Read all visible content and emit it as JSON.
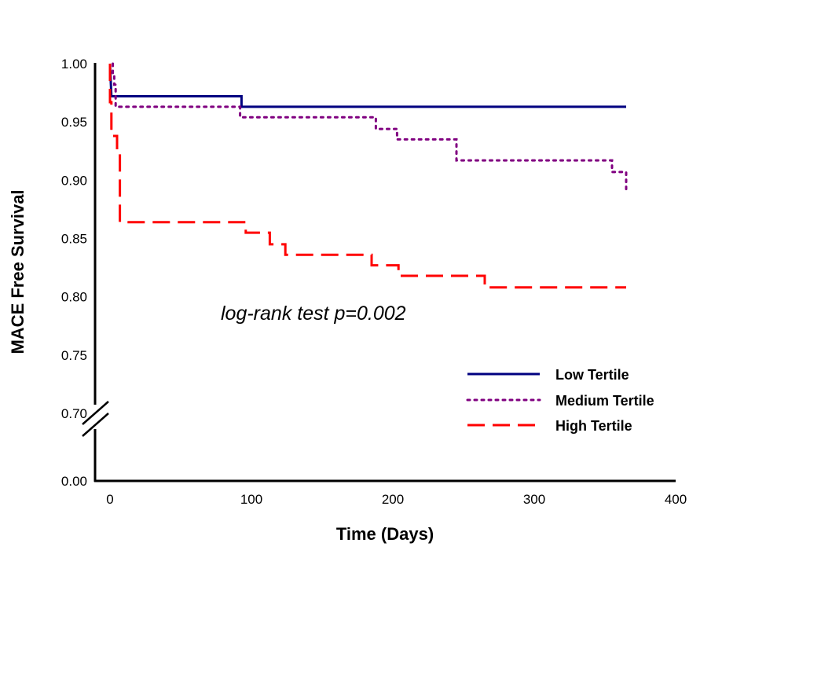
{
  "chart_data": {
    "type": "line",
    "subtype": "kaplan-meier step",
    "title": "",
    "xlabel": "Time (Days)",
    "ylabel": "MACE Free Survival",
    "xlim": [
      0,
      400
    ],
    "ylim_upper": [
      0.7,
      1.0
    ],
    "y_axis_break": "between 0.00 and 0.70",
    "x_ticks": [
      "0",
      "100",
      "200",
      "300",
      "400"
    ],
    "x_tick_values": [
      0,
      100,
      200,
      300,
      400
    ],
    "y_ticks": [
      "1.00",
      "0.95",
      "0.90",
      "0.85",
      "0.80",
      "0.75",
      "0.70",
      "0.00"
    ],
    "y_tick_values": [
      1.0,
      0.95,
      0.9,
      0.85,
      0.8,
      0.75,
      0.7,
      0.0
    ],
    "grid": false,
    "legend_position": "bottom-right",
    "annotation": "log-rank test p=0.002",
    "series": [
      {
        "name": "Low Tertile",
        "color": "#000080",
        "style": "solid",
        "points": [
          [
            0,
            1.0
          ],
          [
            1,
            0.972
          ],
          [
            93,
            0.972
          ],
          [
            93,
            0.963
          ],
          [
            365,
            0.963
          ]
        ]
      },
      {
        "name": "Medium Tertile",
        "color": "#800080",
        "style": "dotted",
        "points": [
          [
            2,
            1.0
          ],
          [
            2,
            0.991
          ],
          [
            3,
            0.991
          ],
          [
            3,
            0.982
          ],
          [
            4,
            0.982
          ],
          [
            4,
            0.963
          ],
          [
            92,
            0.963
          ],
          [
            92,
            0.954
          ],
          [
            188,
            0.954
          ],
          [
            188,
            0.944
          ],
          [
            203,
            0.944
          ],
          [
            203,
            0.935
          ],
          [
            245,
            0.935
          ],
          [
            245,
            0.917
          ],
          [
            355,
            0.917
          ],
          [
            355,
            0.907
          ],
          [
            365,
            0.907
          ],
          [
            365,
            0.891
          ]
        ]
      },
      {
        "name": "High Tertile",
        "color": "#ff0000",
        "style": "dashed",
        "points": [
          [
            0,
            1.0
          ],
          [
            0,
            0.967
          ],
          [
            1,
            0.967
          ],
          [
            1,
            0.938
          ],
          [
            5,
            0.938
          ],
          [
            5,
            0.926
          ],
          [
            7,
            0.926
          ],
          [
            7,
            0.864
          ],
          [
            96,
            0.864
          ],
          [
            96,
            0.855
          ],
          [
            113,
            0.855
          ],
          [
            113,
            0.845
          ],
          [
            124,
            0.845
          ],
          [
            124,
            0.836
          ],
          [
            185,
            0.836
          ],
          [
            185,
            0.827
          ],
          [
            204,
            0.827
          ],
          [
            204,
            0.818
          ],
          [
            265,
            0.818
          ],
          [
            265,
            0.808
          ],
          [
            365,
            0.808
          ]
        ]
      }
    ]
  }
}
